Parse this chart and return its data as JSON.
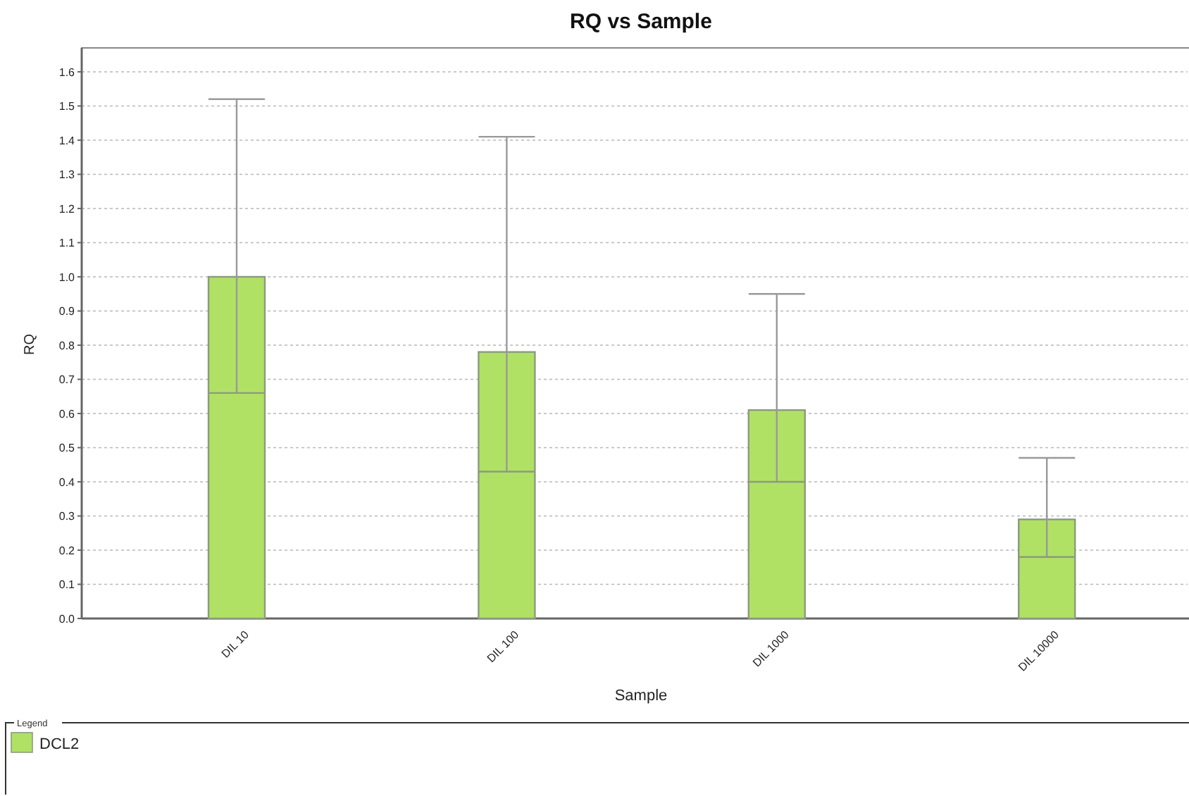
{
  "chart_data": {
    "type": "bar",
    "title": "RQ vs Sample",
    "xlabel": "Sample",
    "ylabel": "RQ",
    "categories": [
      "DIL 10",
      "DIL 100",
      "DIL 1000",
      "DIL 10000"
    ],
    "series": [
      {
        "name": "DCL2",
        "color": "#b0e164",
        "values": [
          1.0,
          0.78,
          0.61,
          0.29
        ],
        "errors": [
          [
            0.66,
            1.52
          ],
          [
            0.43,
            1.41
          ],
          [
            0.4,
            0.95
          ],
          [
            0.18,
            0.47
          ]
        ]
      }
    ],
    "ylim": [
      0,
      1.67
    ],
    "yticks": [
      {
        "value": 0,
        "label": "0.0"
      },
      0.1,
      0.2,
      0.3,
      0.4,
      0.5,
      0.6,
      0.7,
      0.8,
      0.9,
      {
        "value": 1,
        "label": "1.0"
      },
      1.1,
      1.2,
      1.3,
      1.4,
      1.5,
      1.6
    ],
    "grid": "y",
    "legend": "bottom",
    "legend_title": "Legend"
  }
}
